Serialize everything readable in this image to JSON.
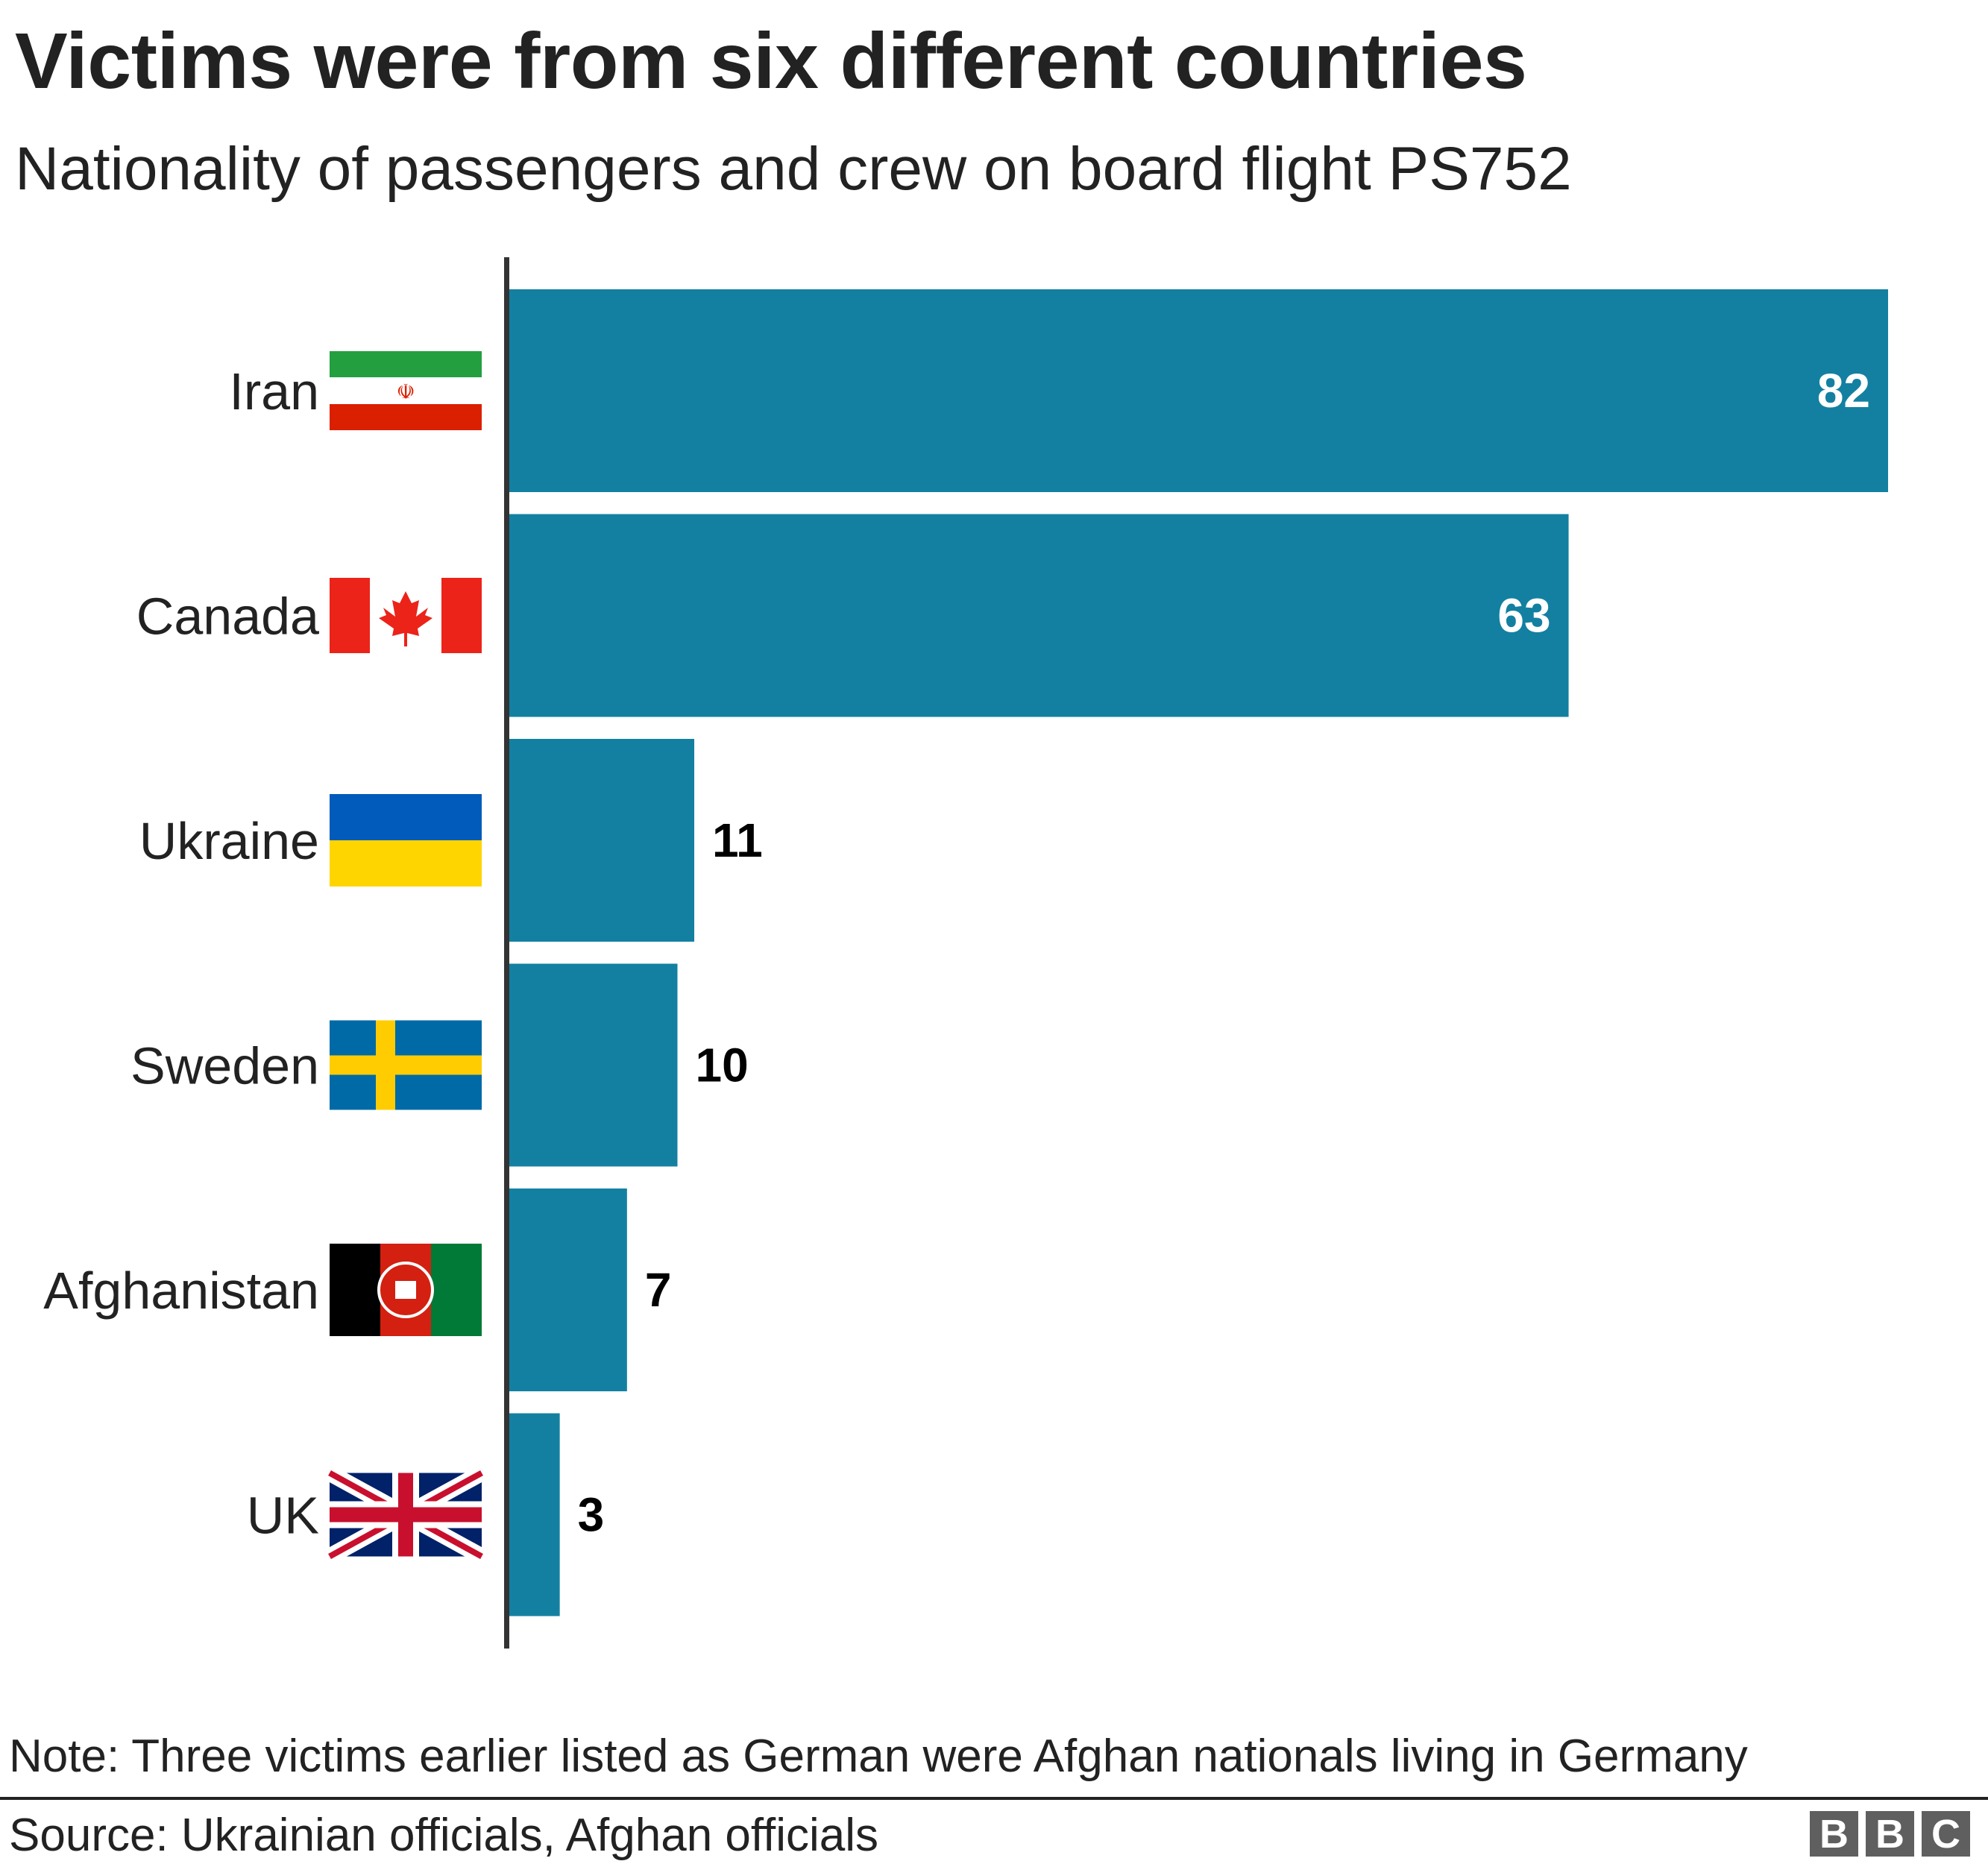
{
  "chart_data": {
    "type": "bar",
    "orientation": "horizontal",
    "title": "Victims were from six different countries",
    "subtitle": "Nationality of passengers and crew on board flight PS752",
    "categories": [
      "Iran",
      "Canada",
      "Ukraine",
      "Sweden",
      "Afghanistan",
      "UK"
    ],
    "values": [
      82,
      63,
      11,
      10,
      7,
      3
    ],
    "data_labels": [
      "82",
      "63",
      "11",
      "10",
      "7",
      "3"
    ],
    "flags": [
      "iran-flag",
      "canada-flag",
      "ukraine-flag",
      "sweden-flag",
      "afghanistan-flag",
      "uk-flag"
    ],
    "xlim": [
      0,
      82
    ],
    "grid": false,
    "bar_color": "#1380a1",
    "axis_color": "#333333",
    "note": "Note: Three victims earlier listed as German were Afghan nationals living in Germany",
    "source": "Source: Ukrainian officials, Afghan officials"
  },
  "logo": {
    "letters": [
      "B",
      "B",
      "C"
    ]
  }
}
